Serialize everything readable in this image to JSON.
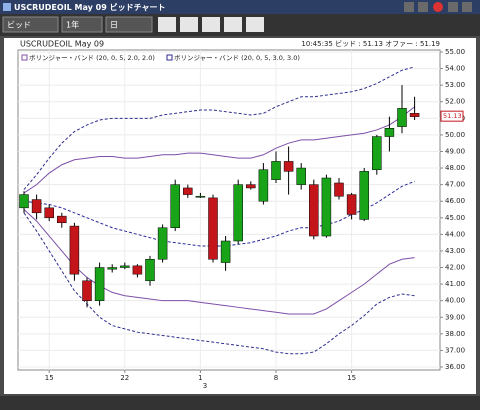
{
  "window": {
    "title": "USCRUDEOIL May 09 ビッドチャート"
  },
  "toolbar": {
    "price_type": "ビッド",
    "period": "1年",
    "interval": "日"
  },
  "chart_data": {
    "type": "candlestick",
    "title": "USCRUDEOIL May 09",
    "quote": "10:45:35 ビッド : 51.13 オファー : 51.19",
    "categories": [
      null,
      null,
      "15",
      null,
      null,
      null,
      null,
      null,
      "22",
      null,
      null,
      null,
      null,
      null,
      "1",
      null,
      null,
      null,
      null,
      null,
      "8",
      null,
      null,
      null,
      null,
      null,
      "15",
      null,
      null,
      null,
      null,
      null
    ],
    "month_label": "3",
    "open": [
      45.6,
      46.1,
      45.6,
      45.1,
      44.5,
      41.2,
      40.0,
      41.9,
      42.0,
      42.1,
      41.2,
      42.5,
      44.4,
      46.8,
      46.3,
      46.2,
      42.3,
      43.6,
      47.0,
      46.0,
      47.3,
      48.4,
      47.0,
      47.0,
      43.9,
      47.1,
      46.4,
      44.9,
      47.9,
      49.9,
      50.5,
      51.3
    ],
    "high": [
      46.6,
      46.4,
      45.8,
      45.3,
      44.7,
      41.4,
      42.3,
      42.2,
      42.3,
      42.2,
      42.7,
      44.6,
      47.3,
      47.0,
      46.5,
      46.4,
      43.9,
      47.3,
      47.2,
      48.3,
      49.0,
      49.3,
      48.3,
      47.3,
      47.6,
      47.4,
      46.5,
      48.0,
      50.0,
      51.1,
      53.0,
      52.3
    ],
    "low": [
      45.3,
      44.9,
      44.8,
      44.4,
      41.2,
      39.6,
      39.7,
      41.7,
      41.9,
      41.4,
      40.9,
      42.3,
      44.2,
      46.2,
      46.2,
      42.3,
      41.8,
      43.4,
      46.7,
      45.8,
      47.1,
      46.4,
      46.7,
      43.7,
      43.8,
      46.1,
      44.9,
      44.8,
      47.6,
      49.0,
      50.1,
      50.9
    ],
    "close": [
      46.4,
      45.3,
      45.0,
      44.7,
      41.6,
      40.0,
      42.0,
      42.0,
      42.1,
      41.6,
      42.5,
      44.4,
      47.0,
      46.4,
      46.3,
      42.5,
      43.6,
      47.0,
      46.8,
      47.9,
      48.4,
      47.8,
      48.0,
      43.9,
      47.4,
      46.3,
      45.2,
      47.8,
      49.9,
      50.4,
      51.6,
      51.1
    ],
    "up_color": "#19a319",
    "down_color": "#c4151b",
    "indicators": [
      {
        "name": "ボリンジャー・バンド (20, 0, 5, 2.0, 2.0)",
        "color": "#7d4fa8",
        "dash": false,
        "middle": [
          46.0,
          45.9,
          45.8,
          45.6,
          45.3,
          45.0,
          44.7,
          44.4,
          44.2,
          44.0,
          43.8,
          43.6,
          43.5,
          43.4,
          43.3,
          43.3,
          43.3,
          43.4,
          43.5,
          43.7,
          43.9,
          44.2,
          44.4,
          44.4,
          44.6,
          44.8,
          45.2,
          45.5,
          45.9,
          46.4,
          46.9,
          47.2
        ],
        "middle_color": "#2a2a9a",
        "upper": [
          46.5,
          47.0,
          47.7,
          48.2,
          48.5,
          48.6,
          48.7,
          48.7,
          48.6,
          48.6,
          48.7,
          48.8,
          48.8,
          48.9,
          48.9,
          48.8,
          48.7,
          48.6,
          48.6,
          48.8,
          49.2,
          49.5,
          49.7,
          49.7,
          49.8,
          49.9,
          50.0,
          50.1,
          50.3,
          50.6,
          51.1,
          51.7
        ],
        "lower": [
          45.5,
          44.8,
          43.9,
          43.0,
          42.1,
          41.4,
          40.9,
          40.5,
          40.3,
          40.2,
          40.1,
          40.0,
          40.0,
          40.0,
          39.9,
          39.8,
          39.7,
          39.6,
          39.5,
          39.4,
          39.3,
          39.2,
          39.2,
          39.2,
          39.5,
          40.0,
          40.5,
          41.0,
          41.6,
          42.2,
          42.5,
          42.6
        ]
      },
      {
        "name": "ボリンジャー・バンド (20, 0, 5, 3.0, 3.0)",
        "color": "#2e2e8e",
        "dash": true,
        "upper": [
          46.7,
          47.6,
          48.6,
          49.5,
          50.2,
          50.6,
          50.9,
          51.0,
          51.0,
          51.0,
          51.0,
          51.2,
          51.3,
          51.4,
          51.5,
          51.5,
          51.4,
          51.3,
          51.2,
          51.3,
          51.7,
          52.0,
          52.3,
          52.3,
          52.4,
          52.5,
          52.6,
          52.8,
          53.1,
          53.5,
          53.9,
          54.1
        ],
        "lower": [
          45.3,
          44.2,
          43.0,
          41.8,
          40.6,
          39.8,
          39.0,
          38.5,
          38.3,
          38.1,
          38.0,
          37.9,
          37.8,
          37.7,
          37.6,
          37.5,
          37.4,
          37.3,
          37.2,
          37.1,
          36.9,
          36.8,
          36.8,
          36.9,
          37.4,
          38.0,
          38.5,
          39.1,
          39.8,
          40.2,
          40.4,
          40.3
        ]
      }
    ],
    "last_price": {
      "value": 51.13,
      "label": "51.13"
    },
    "ylim": [
      36,
      55
    ],
    "yticks": [
      {
        "value": 36,
        "label": "36.00"
      },
      {
        "value": 37,
        "label": "37.00"
      },
      {
        "value": 38,
        "label": "38.00"
      },
      {
        "value": 39,
        "label": "39.00"
      },
      {
        "value": 40,
        "label": "40.00"
      },
      {
        "value": 41,
        "label": "41.00"
      },
      {
        "value": 42,
        "label": "42.00"
      },
      {
        "value": 43,
        "label": "43.00"
      },
      {
        "value": 44,
        "label": "44.00"
      },
      {
        "value": 45,
        "label": "45.00"
      },
      {
        "value": 46,
        "label": "46.00"
      },
      {
        "value": 47,
        "label": "47.00"
      },
      {
        "value": 48,
        "label": "48.00"
      },
      {
        "value": 49,
        "label": "49.00"
      },
      {
        "value": 50,
        "label": "50.00"
      },
      {
        "value": 51,
        "label": "51.00"
      },
      {
        "value": 52,
        "label": "52.00"
      },
      {
        "value": 53,
        "label": "53.00"
      },
      {
        "value": 54,
        "label": "54.00"
      },
      {
        "value": 55,
        "label": "55.00"
      }
    ],
    "grid": true
  }
}
